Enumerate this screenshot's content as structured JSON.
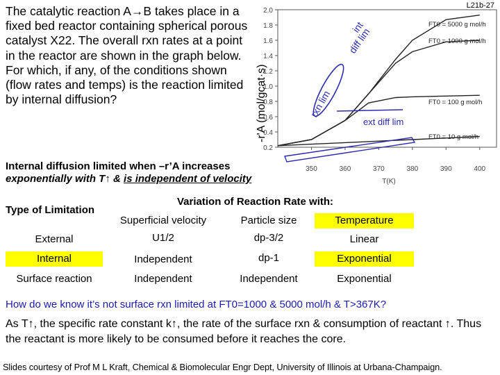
{
  "slide_id": "L21b-27",
  "question": "The catalytic reaction A→B takes place in a fixed bed reactor containing spherical porous catalyst X22. The overall rxn rates at a point in the reactor are shown in the graph below. For which, if any, of the conditions shown (flow rates and temps) is the reaction limited by internal diffusion?",
  "ylabel": "-r'A (mol/gcat·s)",
  "chart_data": {
    "type": "line",
    "xlabel": "T(K)",
    "ylabel": "-r'A (mol/gcat·s)",
    "x_ticks": [
      "350",
      "360",
      "370",
      "380",
      "390",
      "400"
    ],
    "y_ticks": [
      "0.2",
      "0.4",
      "0.6",
      "0.8",
      "1.0",
      "1.2",
      "1.4",
      "1.6",
      "1.8",
      "2.0"
    ],
    "xlim": [
      340,
      405
    ],
    "ylim": [
      0.2,
      2.0
    ],
    "series": [
      {
        "name": "F_T0 = 5000 g mol/h",
        "x": [
          340,
          350,
          360,
          367,
          375,
          380,
          390,
          400
        ],
        "y": [
          0.22,
          0.3,
          0.55,
          0.9,
          1.35,
          1.6,
          1.87,
          1.93
        ]
      },
      {
        "name": "F_T0 = 1000 g mol/h",
        "x": [
          340,
          350,
          360,
          367,
          375,
          380,
          390,
          400
        ],
        "y": [
          0.22,
          0.3,
          0.55,
          0.9,
          1.3,
          1.45,
          1.58,
          1.6
        ]
      },
      {
        "name": "F_T0 = 100 g mol/h",
        "x": [
          340,
          350,
          360,
          367,
          375,
          380,
          390,
          400
        ],
        "y": [
          0.22,
          0.3,
          0.55,
          0.78,
          0.85,
          0.86,
          0.87,
          0.88
        ]
      },
      {
        "name": "F_T0 = 10 g mol/h",
        "x": [
          340,
          350,
          360,
          370,
          380,
          390,
          400
        ],
        "y": [
          0.22,
          0.24,
          0.26,
          0.28,
          0.3,
          0.32,
          0.34
        ]
      }
    ],
    "annotations": [
      "int diff lim",
      "rxn lim",
      "ext diff lim"
    ]
  },
  "annot_int": "int",
  "annot_diff_lim": "diff lim",
  "annot_rxn_lim": "rxn lim",
  "annot_ext": "ext diff lim",
  "idl_line1": "Internal diffusion limited when –r’A increases",
  "idl_line2a": "exponentially with T↑ & ",
  "idl_line2b": "is independent of velocity",
  "table": {
    "title": "Variation of Reaction Rate with:",
    "corner": "Type of Limitation",
    "columns": [
      "Superficial velocity",
      "Particle size",
      "Temperature"
    ],
    "rows": [
      {
        "type": "External",
        "velocity": "U1/2",
        "size": "dp-3/2",
        "temp": "Linear"
      },
      {
        "type": "Internal",
        "velocity": "Independent",
        "size": "dp-1",
        "temp": "Exponential"
      },
      {
        "type": "Surface reaction",
        "velocity": "Independent",
        "size": "Independent",
        "temp": "Exponential"
      }
    ]
  },
  "q2": "How do we know it’s not surface rxn limited at FT0=1000 & 5000 mol/h & T>367K?",
  "q2_answer": "As T↑, the specific rate constant k↑, the rate of the surface rxn & consumption of reactant ↑. Thus the reactant is more likely to be consumed before it reaches the core.",
  "credit": "Slides courtesy of Prof M L Kraft, Chemical & Biomolecular Engr Dept, University of Illinois at Urbana-Champaign.",
  "colors": {
    "hand_annotation": "#2b2bb0",
    "highlight": "#ffff00",
    "question_blue": "#1a1ab4"
  }
}
